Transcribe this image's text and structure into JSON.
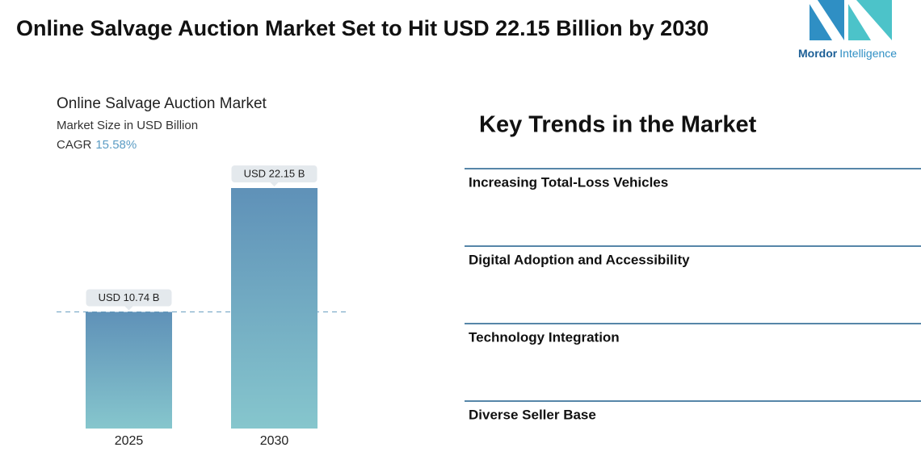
{
  "header": {
    "title": "Online Salvage Auction Market Set to Hit USD 22.15 Billion by 2030",
    "logo": {
      "brand": "Mordor",
      "suffix": "Intelligence"
    }
  },
  "chart_data": {
    "type": "bar",
    "title": "Online Salvage Auction Market",
    "subtitle": "Market Size in USD Billion",
    "cagr_label": "CAGR",
    "cagr": "15.58%",
    "categories": [
      "2025",
      "2030"
    ],
    "values": [
      10.74,
      22.15
    ],
    "value_labels": [
      "USD 10.74 B",
      "USD 22.15 B"
    ],
    "color": "#6a9fc0"
  },
  "trends": {
    "title": "Key Trends in the Market",
    "items": [
      "Increasing Total-Loss Vehicles",
      "Digital Adoption and Accessibility",
      "Technology Integration",
      "Diverse Seller Base"
    ]
  }
}
